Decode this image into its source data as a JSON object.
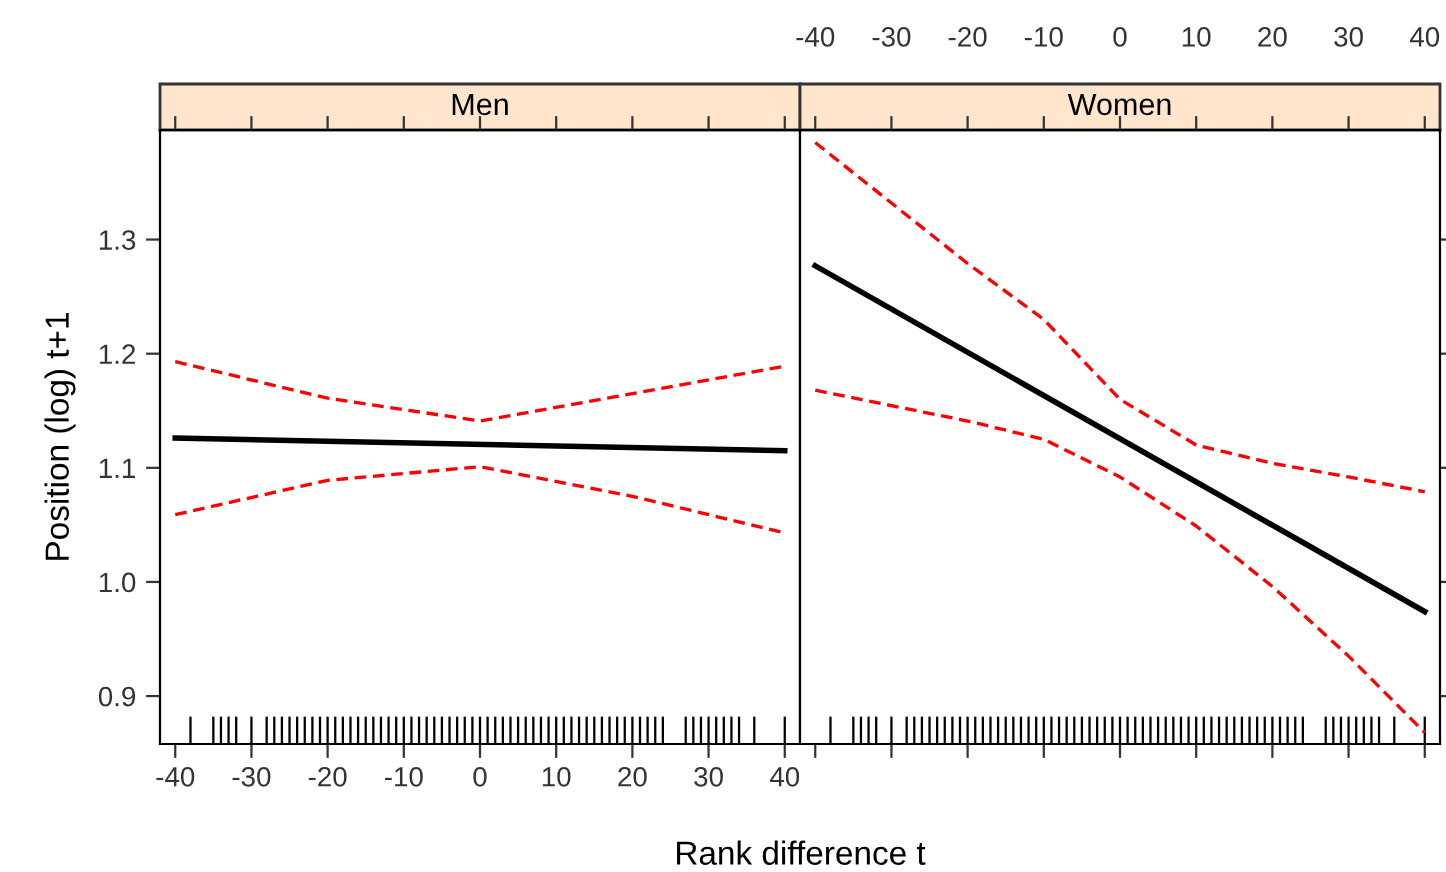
{
  "chart_data": [
    {
      "type": "line",
      "title": "Men",
      "xlabel": "Rank difference t",
      "ylabel": "Position (log) t+1",
      "xlim": [
        -42,
        42
      ],
      "xticks": [
        -40,
        -30,
        -20,
        -10,
        0,
        10,
        20,
        30,
        40
      ],
      "ylim": [
        0.858,
        1.396
      ],
      "yticks": [
        {
          "value": 0.9,
          "label": "0.9"
        },
        {
          "value": 1.0,
          "label": "1.0"
        },
        {
          "value": 1.1,
          "label": "1.1"
        },
        {
          "value": 1.2,
          "label": "1.2"
        },
        {
          "value": 1.3,
          "label": "1.3"
        }
      ],
      "series": [
        {
          "color": "#000000",
          "line_style": "solid",
          "x": [
            -40,
            40
          ],
          "values": [
            1.126,
            1.115
          ]
        },
        {
          "color": "#ff0000",
          "line_style": "dashed",
          "x": [
            -40,
            -20,
            0,
            20,
            40
          ],
          "values": [
            1.193,
            1.161,
            1.141,
            1.165,
            1.189
          ]
        },
        {
          "color": "#ff0000",
          "line_style": "dashed",
          "x": [
            -40,
            -20,
            0,
            20,
            40
          ],
          "values": [
            1.059,
            1.089,
            1.101,
            1.075,
            1.043
          ]
        },
        {
          "type": "bar",
          "color": "#000000",
          "x": [
            -38,
            -35,
            -34,
            -33,
            -32,
            -30,
            -28,
            -27,
            -26,
            -25,
            -24,
            -23,
            -22,
            -21,
            -20,
            -19,
            -18,
            -17,
            -16,
            -15,
            -14,
            -13,
            -12,
            -11,
            -10,
            -9,
            -8,
            -7,
            -6,
            -5,
            -4,
            -3,
            -2,
            -1,
            0,
            1,
            2,
            3,
            4,
            5,
            6,
            7,
            8,
            9,
            10,
            11,
            12,
            13,
            14,
            15,
            16,
            17,
            18,
            19,
            20,
            21,
            22,
            23,
            24,
            27,
            28,
            29,
            30,
            31,
            32,
            33,
            34,
            36,
            40
          ],
          "base": [
            0.858,
            0.858,
            0.858,
            0.858,
            0.858,
            0.858,
            0.858,
            0.858,
            0.858,
            0.858,
            0.858,
            0.858,
            0.858,
            0.858,
            0.858,
            0.858,
            0.858,
            0.858,
            0.858,
            0.858,
            0.858,
            0.858,
            0.858,
            0.858,
            0.858,
            0.858,
            0.858,
            0.858,
            0.858,
            0.858,
            0.858,
            0.858,
            0.858,
            0.858,
            0.858,
            0.858,
            0.858,
            0.858,
            0.858,
            0.858,
            0.858,
            0.858,
            0.858,
            0.858,
            0.858,
            0.858,
            0.858,
            0.858,
            0.858,
            0.858,
            0.858,
            0.858,
            0.858,
            0.858,
            0.858,
            0.858,
            0.858,
            0.858,
            0.858,
            0.858,
            0.858,
            0.858,
            0.858,
            0.858,
            0.858,
            0.858,
            0.858,
            0.858,
            0.858
          ],
          "values": [
            0.024,
            0.024,
            0.024,
            0.024,
            0.024,
            0.024,
            0.024,
            0.024,
            0.024,
            0.024,
            0.024,
            0.024,
            0.024,
            0.024,
            0.024,
            0.024,
            0.024,
            0.024,
            0.024,
            0.024,
            0.024,
            0.024,
            0.024,
            0.024,
            0.024,
            0.024,
            0.024,
            0.024,
            0.024,
            0.024,
            0.024,
            0.024,
            0.024,
            0.024,
            0.024,
            0.024,
            0.024,
            0.024,
            0.024,
            0.024,
            0.024,
            0.024,
            0.024,
            0.024,
            0.024,
            0.024,
            0.024,
            0.024,
            0.024,
            0.024,
            0.024,
            0.024,
            0.024,
            0.024,
            0.024,
            0.024,
            0.024,
            0.024,
            0.024,
            0.024,
            0.024,
            0.024,
            0.024,
            0.024,
            0.024,
            0.024,
            0.024,
            0.024,
            0.024
          ]
        }
      ]
    },
    {
      "type": "line",
      "title": "Women",
      "xlim": [
        -42,
        42
      ],
      "xticks": [
        -40,
        -30,
        -20,
        -10,
        0,
        10,
        20,
        30,
        40
      ],
      "ylim": [
        0.858,
        1.396
      ],
      "yticks": [
        0.9,
        1.0,
        1.1,
        1.2,
        1.3
      ],
      "tick_labels": "x",
      "series": [
        {
          "color": "#000000",
          "line_style": "solid",
          "x": [
            -40,
            40
          ],
          "values": [
            1.277,
            0.974
          ]
        },
        {
          "color": "#ff0000",
          "line_style": "dashed",
          "x": [
            -40,
            -20,
            -10,
            0,
            10,
            20,
            30,
            40
          ],
          "values": [
            1.385,
            1.279,
            1.23,
            1.16,
            1.12,
            1.104,
            1.092,
            1.079
          ]
        },
        {
          "color": "#ff0000",
          "line_style": "dashed",
          "x": [
            -40,
            -20,
            -10,
            0,
            10,
            20,
            30,
            40
          ],
          "values": [
            1.168,
            1.141,
            1.125,
            1.092,
            1.049,
            0.996,
            0.935,
            0.868
          ]
        },
        {
          "type": "bar",
          "color": "#000000",
          "x": [
            -38,
            -35,
            -34,
            -33,
            -32,
            -30,
            -28,
            -27,
            -26,
            -25,
            -24,
            -23,
            -22,
            -21,
            -20,
            -19,
            -18,
            -17,
            -16,
            -15,
            -14,
            -13,
            -12,
            -11,
            -10,
            -9,
            -8,
            -7,
            -6,
            -5,
            -4,
            -3,
            -2,
            -1,
            0,
            1,
            2,
            3,
            4,
            5,
            6,
            7,
            8,
            9,
            10,
            11,
            12,
            13,
            14,
            15,
            16,
            17,
            18,
            19,
            20,
            21,
            22,
            23,
            24,
            27,
            28,
            29,
            30,
            31,
            32,
            33,
            34,
            36,
            40
          ],
          "base": [
            0.858,
            0.858,
            0.858,
            0.858,
            0.858,
            0.858,
            0.858,
            0.858,
            0.858,
            0.858,
            0.858,
            0.858,
            0.858,
            0.858,
            0.858,
            0.858,
            0.858,
            0.858,
            0.858,
            0.858,
            0.858,
            0.858,
            0.858,
            0.858,
            0.858,
            0.858,
            0.858,
            0.858,
            0.858,
            0.858,
            0.858,
            0.858,
            0.858,
            0.858,
            0.858,
            0.858,
            0.858,
            0.858,
            0.858,
            0.858,
            0.858,
            0.858,
            0.858,
            0.858,
            0.858,
            0.858,
            0.858,
            0.858,
            0.858,
            0.858,
            0.858,
            0.858,
            0.858,
            0.858,
            0.858,
            0.858,
            0.858,
            0.858,
            0.858,
            0.858,
            0.858,
            0.858,
            0.858,
            0.858,
            0.858,
            0.858,
            0.858,
            0.858,
            0.858
          ],
          "values": [
            0.024,
            0.024,
            0.024,
            0.024,
            0.024,
            0.024,
            0.024,
            0.024,
            0.024,
            0.024,
            0.024,
            0.024,
            0.024,
            0.024,
            0.024,
            0.024,
            0.024,
            0.024,
            0.024,
            0.024,
            0.024,
            0.024,
            0.024,
            0.024,
            0.024,
            0.024,
            0.024,
            0.024,
            0.024,
            0.024,
            0.024,
            0.024,
            0.024,
            0.024,
            0.024,
            0.024,
            0.024,
            0.024,
            0.024,
            0.024,
            0.024,
            0.024,
            0.024,
            0.024,
            0.024,
            0.024,
            0.024,
            0.024,
            0.024,
            0.024,
            0.024,
            0.024,
            0.024,
            0.024,
            0.024,
            0.024,
            0.024,
            0.024,
            0.024,
            0.024,
            0.024,
            0.024,
            0.024,
            0.024,
            0.024,
            0.024,
            0.024,
            0.024,
            0.024
          ]
        }
      ]
    }
  ]
}
